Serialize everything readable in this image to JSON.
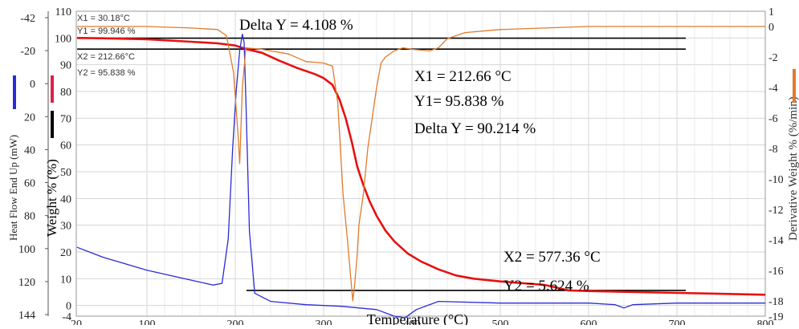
{
  "chart_data": {
    "type": "line",
    "x": {
      "label": "Temperature  (°C)",
      "range": [
        20,
        800
      ],
      "ticks": [
        20,
        100,
        200,
        300,
        400,
        500,
        600,
        700,
        800
      ]
    },
    "grid": true,
    "y_axes": [
      {
        "id": "weight",
        "label": "Weight  %  (%)",
        "range": [
          -4,
          110
        ],
        "ticks": [
          -4,
          0,
          10,
          20,
          30,
          40,
          50,
          60,
          70,
          80,
          90,
          100,
          110
        ]
      },
      {
        "id": "heat_flow",
        "label": "Heat Flow End Up (mW)",
        "range": [
          -42,
          144
        ],
        "tick_labels": [
          "-42",
          "-20",
          "0",
          "20",
          "40",
          "60",
          "80",
          "100",
          "120",
          "144"
        ]
      },
      {
        "id": "derivative",
        "label": "Derivative Weight % (%/min)",
        "range": [
          -19,
          1
        ],
        "ticks": [
          1,
          0,
          -2,
          -4,
          -6,
          -8,
          -10,
          -12,
          -14,
          -16,
          -18,
          -19
        ]
      }
    ],
    "series": [
      {
        "axis": "weight",
        "color": "#e81010",
        "points": [
          [
            21,
            100.0
          ],
          [
            50,
            99.9
          ],
          [
            100,
            99.5
          ],
          [
            150,
            98.6
          ],
          [
            180,
            98.0
          ],
          [
            200,
            97.2
          ],
          [
            212.66,
            95.84
          ],
          [
            230,
            94.5
          ],
          [
            250,
            91.5
          ],
          [
            270,
            88.8
          ],
          [
            290,
            86.5
          ],
          [
            300,
            85.0
          ],
          [
            310,
            82.5
          ],
          [
            318,
            77.0
          ],
          [
            325,
            70.0
          ],
          [
            332,
            61.0
          ],
          [
            338,
            52.0
          ],
          [
            345,
            45.0
          ],
          [
            352,
            39.0
          ],
          [
            360,
            33.5
          ],
          [
            370,
            28.0
          ],
          [
            380,
            24.0
          ],
          [
            395,
            19.5
          ],
          [
            410,
            16.5
          ],
          [
            430,
            13.5
          ],
          [
            450,
            11.2
          ],
          [
            470,
            10.0
          ],
          [
            500,
            9.0
          ],
          [
            550,
            7.7
          ],
          [
            577.36,
            5.62
          ],
          [
            600,
            5.4
          ],
          [
            700,
            4.7
          ],
          [
            800,
            4.0
          ]
        ]
      },
      {
        "axis": "heat_flow",
        "color": "#2b2bd6",
        "points": [
          [
            21,
            0
          ],
          [
            50,
            -6
          ],
          [
            100,
            -14
          ],
          [
            150,
            -20
          ],
          [
            175,
            -23
          ],
          [
            185,
            -22
          ],
          [
            192,
            5
          ],
          [
            197,
            60
          ],
          [
            201,
            95
          ],
          [
            205,
            120
          ],
          [
            208,
            130
          ],
          [
            210,
            125
          ],
          [
            212,
            90
          ],
          [
            216,
            10
          ],
          [
            222,
            -28
          ],
          [
            240,
            -33
          ],
          [
            280,
            -35
          ],
          [
            320,
            -36
          ],
          [
            360,
            -38
          ],
          [
            380,
            -42
          ],
          [
            392,
            -43
          ],
          [
            405,
            -38
          ],
          [
            430,
            -33
          ],
          [
            500,
            -34
          ],
          [
            600,
            -34
          ],
          [
            630,
            -35
          ],
          [
            640,
            -37
          ],
          [
            650,
            -35
          ],
          [
            700,
            -34
          ],
          [
            800,
            -34
          ]
        ]
      },
      {
        "axis": "derivative",
        "color": "#e07b2c",
        "points": [
          [
            21,
            0
          ],
          [
            100,
            0
          ],
          [
            150,
            -0.1
          ],
          [
            180,
            -0.2
          ],
          [
            190,
            -0.6
          ],
          [
            198,
            -3
          ],
          [
            203,
            -7
          ],
          [
            205,
            -9
          ],
          [
            208,
            -4
          ],
          [
            212,
            -1.4
          ],
          [
            230,
            -1.5
          ],
          [
            260,
            -1.8
          ],
          [
            280,
            -2.3
          ],
          [
            300,
            -2.4
          ],
          [
            310,
            -2.6
          ],
          [
            316,
            -5
          ],
          [
            322,
            -11
          ],
          [
            327,
            -14
          ],
          [
            330,
            -16
          ],
          [
            333,
            -18
          ],
          [
            335,
            -17
          ],
          [
            338,
            -15
          ],
          [
            340,
            -13
          ],
          [
            345,
            -11
          ],
          [
            350,
            -8
          ],
          [
            355,
            -6
          ],
          [
            360,
            -4
          ],
          [
            365,
            -2.4
          ],
          [
            370,
            -2
          ],
          [
            380,
            -1.6
          ],
          [
            390,
            -1.4
          ],
          [
            400,
            -1.5
          ],
          [
            420,
            -1.6
          ],
          [
            430,
            -1.4
          ],
          [
            440,
            -0.8
          ],
          [
            460,
            -0.4
          ],
          [
            500,
            -0.2
          ],
          [
            600,
            0
          ],
          [
            700,
            0
          ],
          [
            800,
            0
          ]
        ]
      }
    ],
    "annotations": [
      {
        "text": "Delta Y = 4.108  %"
      },
      {
        "text": "X1 = 212.66  °C"
      },
      {
        "text": "Y1= 95.838  %"
      },
      {
        "text": "Delta Y = 90.214  %"
      },
      {
        "text": "X2 = 577.36  °C"
      },
      {
        "text": "Y2 = 5.624  %"
      }
    ],
    "cursor_labels": [
      "X1 = 30.18°C",
      "Y1 = 99.946 %",
      "X2 = 212.66°C",
      "Y2 = 95.838 %"
    ],
    "markers": [
      {
        "color": "#2b2bd6",
        "axis": "heat_flow"
      },
      {
        "color": "#e0204a",
        "axis": "weight"
      },
      {
        "color": "#000000",
        "axis": "weight"
      },
      {
        "color": "#e07b2c",
        "axis": "derivative"
      }
    ],
    "reference_lines": [
      {
        "y_axis": "weight",
        "y": 99.946,
        "x_from": 21,
        "x_to": 710
      },
      {
        "y_axis": "weight",
        "y": 95.838,
        "x_from": 21,
        "x_to": 710
      },
      {
        "y_axis": "weight",
        "y": 5.624,
        "x_from": 212.66,
        "x_to": 710
      }
    ]
  }
}
